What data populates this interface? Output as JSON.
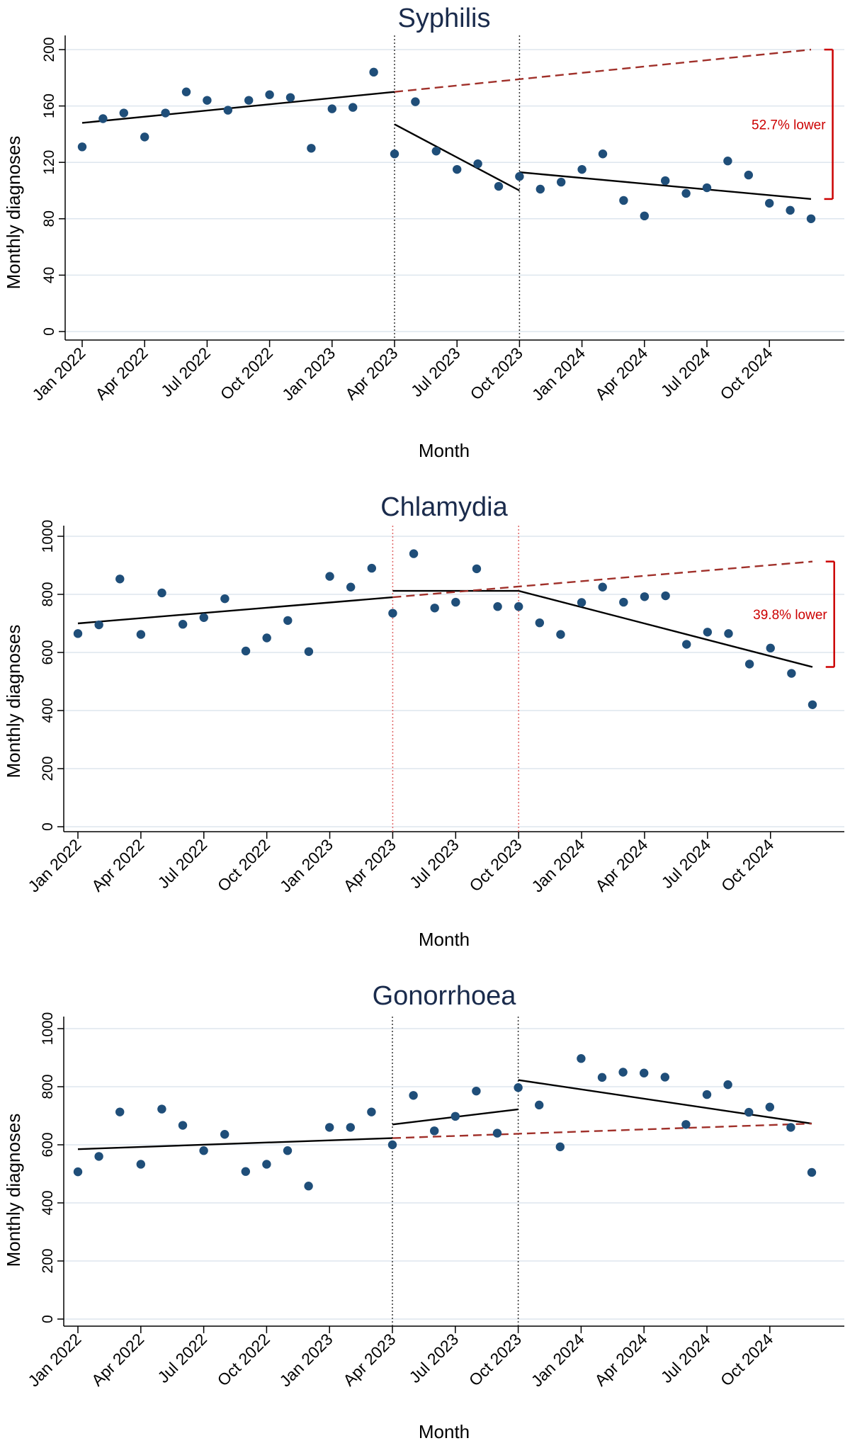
{
  "chart_data": [
    {
      "type": "scatter",
      "title": "Syphilis",
      "xlabel": "Month",
      "ylabel": "Monthly diagnoses",
      "ylim": [
        0,
        200
      ],
      "yticks": [
        0,
        40,
        80,
        120,
        160,
        200
      ],
      "x_tick_labels": [
        "Jan 2022",
        "Apr 2022",
        "Jul 2022",
        "Oct 2022",
        "Jan 2023",
        "Apr 2023",
        "Jul 2023",
        "Oct 2023",
        "Jan 2024",
        "Apr 2024",
        "Jul 2024",
        "Oct 2024"
      ],
      "x_tick_month_index": [
        0,
        3,
        6,
        9,
        12,
        15,
        18,
        21,
        24,
        27,
        30,
        33
      ],
      "interventions_month_index": [
        15,
        21
      ],
      "intervention_line_color": "#333333",
      "point_color": "#1f4e79",
      "values": [
        131,
        151,
        155,
        138,
        155,
        170,
        164,
        157,
        164,
        168,
        166,
        130,
        158,
        159,
        184,
        126,
        163,
        128,
        115,
        119,
        103,
        110,
        101,
        106,
        115,
        126,
        93,
        82,
        107,
        98,
        102,
        121,
        111,
        91,
        86,
        80
      ],
      "fitted_segments": [
        {
          "name": "pre-intervention trend",
          "x": [
            0,
            15
          ],
          "y": [
            148,
            170
          ],
          "style": "solid"
        },
        {
          "name": "interim trend",
          "x": [
            15,
            21
          ],
          "y": [
            147,
            100
          ],
          "style": "solid"
        },
        {
          "name": "post-intervention trend",
          "x": [
            21,
            35
          ],
          "y": [
            113,
            94
          ],
          "style": "solid"
        },
        {
          "name": "counterfactual",
          "x": [
            15,
            35
          ],
          "y": [
            170,
            200
          ],
          "style": "dashed"
        }
      ],
      "annotation": {
        "text": "52.7% lower",
        "from": 200,
        "to": 94,
        "x": 35.7
      }
    },
    {
      "type": "scatter",
      "title": "Chlamydia",
      "xlabel": "Month",
      "ylabel": "Monthly diagnoses",
      "ylim": [
        0,
        1000
      ],
      "yticks": [
        0,
        200,
        400,
        600,
        800,
        1000
      ],
      "x_tick_labels": [
        "Jan 2022",
        "Apr 2022",
        "Jul 2022",
        "Oct 2022",
        "Jan 2023",
        "Apr 2023",
        "Jul 2023",
        "Oct 2023",
        "Jan 2024",
        "Apr 2024",
        "Jul 2024",
        "Oct 2024"
      ],
      "x_tick_month_index": [
        0,
        3,
        6,
        9,
        12,
        15,
        18,
        21,
        24,
        27,
        30,
        33
      ],
      "interventions_month_index": [
        15,
        21
      ],
      "intervention_line_color": "#e06666",
      "point_color": "#1f4e79",
      "values": [
        665,
        695,
        853,
        662,
        805,
        697,
        720,
        785,
        605,
        650,
        710,
        603,
        862,
        825,
        890,
        735,
        940,
        753,
        773,
        888,
        758,
        758,
        702,
        662,
        772,
        825,
        773,
        792,
        795,
        628,
        670,
        665,
        560,
        615,
        528,
        420
      ],
      "fitted_segments": [
        {
          "name": "pre-intervention trend",
          "x": [
            0,
            15
          ],
          "y": [
            700,
            790
          ],
          "style": "solid"
        },
        {
          "name": "interim trend",
          "x": [
            15,
            21
          ],
          "y": [
            812,
            812
          ],
          "style": "solid"
        },
        {
          "name": "post-intervention trend",
          "x": [
            21,
            35
          ],
          "y": [
            812,
            550
          ],
          "style": "solid"
        },
        {
          "name": "counterfactual",
          "x": [
            15,
            35
          ],
          "y": [
            790,
            913
          ],
          "style": "dashed"
        }
      ],
      "annotation": {
        "text": "39.8% lower",
        "from": 913,
        "to": 550,
        "x": 35.7
      }
    },
    {
      "type": "scatter",
      "title": "Gonorrhoea",
      "xlabel": "Month",
      "ylabel": "Monthly diagnoses",
      "ylim": [
        0,
        1000
      ],
      "yticks": [
        0,
        200,
        400,
        600,
        800,
        1000
      ],
      "x_tick_labels": [
        "Jan 2022",
        "Apr 2022",
        "Jul 2022",
        "Oct 2022",
        "Jan 2023",
        "Apr 2023",
        "Jul 2023",
        "Oct 2023",
        "Jan 2024",
        "Apr 2024",
        "Jul 2024",
        "Oct 2024"
      ],
      "x_tick_month_index": [
        0,
        3,
        6,
        9,
        12,
        15,
        18,
        21,
        24,
        27,
        30,
        33
      ],
      "interventions_month_index": [
        15,
        21
      ],
      "intervention_line_color": "#333333",
      "point_color": "#1f4e79",
      "values": [
        507,
        560,
        713,
        533,
        723,
        667,
        580,
        636,
        508,
        533,
        580,
        458,
        660,
        660,
        713,
        600,
        770,
        648,
        698,
        785,
        640,
        797,
        737,
        593,
        897,
        832,
        850,
        847,
        833,
        670,
        773,
        807,
        712,
        730,
        660,
        505
      ],
      "fitted_segments": [
        {
          "name": "pre-intervention trend",
          "x": [
            0,
            15
          ],
          "y": [
            585,
            623
          ],
          "style": "solid"
        },
        {
          "name": "interim trend",
          "x": [
            15,
            21
          ],
          "y": [
            670,
            722
          ],
          "style": "solid"
        },
        {
          "name": "post-intervention trend",
          "x": [
            21,
            35
          ],
          "y": [
            823,
            673
          ],
          "style": "solid"
        },
        {
          "name": "counterfactual",
          "x": [
            15,
            35
          ],
          "y": [
            623,
            673
          ],
          "style": "dashed"
        }
      ],
      "annotation": null
    }
  ],
  "colors": {
    "title": "#1a2b4c",
    "points": "#1f4e79",
    "fit_line": "#000000",
    "counterfactual": "#a0302a",
    "annotation": "#cc0000",
    "grid": "#dde6ee"
  }
}
